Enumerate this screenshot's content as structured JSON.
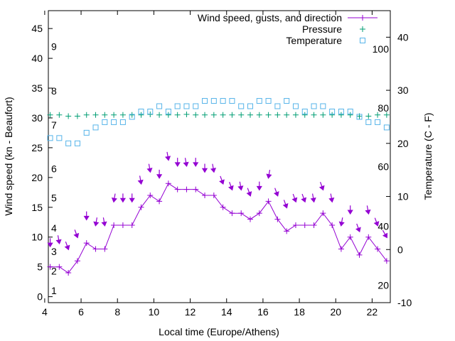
{
  "chart_data": {
    "type": "line",
    "xlabel": "Local time (Europe/Athens)",
    "ylabel": "Wind speed (kn - Beaufort)",
    "y2label": "Temperature (C - F)",
    "xlim": [
      4.2,
      23
    ],
    "ylim": [
      -1,
      48
    ],
    "y2lim": [
      -10,
      45
    ],
    "x_ticks": [
      4,
      6,
      8,
      10,
      12,
      14,
      16,
      18,
      20,
      22
    ],
    "y_ticks": [
      0,
      5,
      10,
      15,
      20,
      25,
      30,
      35,
      40,
      45
    ],
    "y2_ticks": [
      -10,
      0,
      10,
      20,
      30,
      40
    ],
    "fahrenheit_labels": [
      {
        "label": "20",
        "celsius": -6.7
      },
      {
        "label": "40",
        "celsius": 4.4
      },
      {
        "label": "60",
        "celsius": 15.6
      },
      {
        "label": "80",
        "celsius": 26.7
      },
      {
        "label": "100",
        "celsius": 37.8
      }
    ],
    "beaufort_labels": [
      {
        "label": "1",
        "y": 1
      },
      {
        "label": "2",
        "y": 4.3
      },
      {
        "label": "3",
        "y": 7.6
      },
      {
        "label": "4",
        "y": 11.5
      },
      {
        "label": "5",
        "y": 16.6
      },
      {
        "label": "6",
        "y": 21.5
      },
      {
        "label": "7",
        "y": 28.8
      },
      {
        "label": "8",
        "y": 34.5
      },
      {
        "label": "9",
        "y": 42
      }
    ],
    "legend": [
      {
        "name": "Wind speed, gusts, and direction",
        "marker": "line-plus"
      },
      {
        "name": "Pressure",
        "marker": "plus"
      },
      {
        "name": "Temperature",
        "marker": "square"
      }
    ],
    "colors": {
      "wind": "#9400d3",
      "pressure": "#009e73",
      "temperature": "#56b4e9"
    },
    "series": [
      {
        "name": "Wind speed, gusts, and direction",
        "x": [
          4.3,
          4.8,
          5.3,
          5.8,
          6.3,
          6.8,
          7.3,
          7.8,
          8.3,
          8.8,
          9.3,
          9.8,
          10.3,
          10.8,
          11.3,
          11.8,
          12.3,
          12.8,
          13.3,
          13.8,
          14.3,
          14.8,
          15.3,
          15.8,
          16.3,
          16.8,
          17.3,
          17.8,
          18.3,
          18.8,
          19.3,
          19.8,
          20.3,
          20.8,
          21.3,
          21.8,
          22.3,
          22.8
        ],
        "values": [
          5,
          5,
          4,
          6,
          9,
          8,
          8,
          12,
          12,
          12,
          15,
          17,
          16,
          19,
          18,
          18,
          18,
          17,
          17,
          15,
          14,
          14,
          13,
          14,
          16,
          13,
          11,
          12,
          12,
          12,
          14,
          12,
          8,
          10,
          7,
          10,
          8,
          6
        ]
      },
      {
        "name": "Gusts",
        "x": [
          4.3,
          4.8,
          5.3,
          5.8,
          6.3,
          6.8,
          7.3,
          7.8,
          8.3,
          8.8,
          9.3,
          9.8,
          10.3,
          10.8,
          11.3,
          11.8,
          12.3,
          12.8,
          13.3,
          13.8,
          14.3,
          14.8,
          15.3,
          15.8,
          16.3,
          16.8,
          17.3,
          17.8,
          18.3,
          18.8,
          19.3,
          19.8,
          20.3,
          20.8,
          21.3,
          21.8,
          22.3,
          22.8
        ],
        "values": [
          8.5,
          9,
          8,
          10,
          13,
          12,
          12,
          16,
          16,
          16,
          19,
          21,
          20,
          23,
          22,
          22,
          22,
          21,
          21,
          19,
          18,
          18,
          17,
          18,
          20,
          17,
          15,
          16,
          16,
          16,
          18,
          16,
          12,
          14,
          11,
          14,
          12,
          10
        ],
        "direction_deg": [
          0,
          350,
          340,
          340,
          0,
          10,
          350,
          10,
          0,
          0,
          350,
          350,
          0,
          350,
          0,
          350,
          0,
          0,
          350,
          340,
          340,
          350,
          340,
          0,
          10,
          340,
          340,
          340,
          340,
          350,
          340,
          350,
          10,
          0,
          340,
          350,
          340,
          330
        ]
      },
      {
        "name": "Pressure",
        "x": [
          4.3,
          4.8,
          5.3,
          5.8,
          6.3,
          6.8,
          7.3,
          7.8,
          8.3,
          8.8,
          9.3,
          9.8,
          10.3,
          10.8,
          11.3,
          11.8,
          12.3,
          12.8,
          13.3,
          13.8,
          14.3,
          14.8,
          15.3,
          15.8,
          16.3,
          16.8,
          17.3,
          17.8,
          18.3,
          18.8,
          19.3,
          19.8,
          20.3,
          20.8,
          21.3,
          21.8,
          22.3,
          22.8
        ],
        "values": [
          30.5,
          30.5,
          30.3,
          30.3,
          30.5,
          30.5,
          30.5,
          30.5,
          30.5,
          30.5,
          30.5,
          30.6,
          30.5,
          30.5,
          30.5,
          30.6,
          30.5,
          30.5,
          30.5,
          30.5,
          30.5,
          30.5,
          30.5,
          30.5,
          30.5,
          30.5,
          30.5,
          30.5,
          30.5,
          30.5,
          30.5,
          30.5,
          30.5,
          30.5,
          30.3,
          30.3,
          30.5,
          30.5
        ]
      },
      {
        "name": "Temperature",
        "x": [
          4.3,
          4.8,
          5.3,
          5.8,
          6.3,
          6.8,
          7.3,
          7.8,
          8.3,
          8.8,
          9.3,
          9.8,
          10.3,
          10.8,
          11.3,
          11.8,
          12.3,
          12.8,
          13.3,
          13.8,
          14.3,
          14.8,
          15.3,
          15.8,
          16.3,
          16.8,
          17.3,
          17.8,
          18.3,
          18.8,
          19.3,
          19.8,
          20.3,
          20.8,
          21.3,
          21.8,
          22.3,
          22.8
        ],
        "values": [
          21,
          21,
          20,
          20,
          22,
          23,
          24,
          24,
          24,
          25,
          26,
          26,
          27,
          26,
          27,
          27,
          27,
          28,
          28,
          28,
          28,
          27,
          27,
          28,
          28,
          27,
          28,
          27,
          26,
          27,
          27,
          26,
          26,
          26,
          25,
          24,
          24,
          23
        ]
      }
    ]
  }
}
